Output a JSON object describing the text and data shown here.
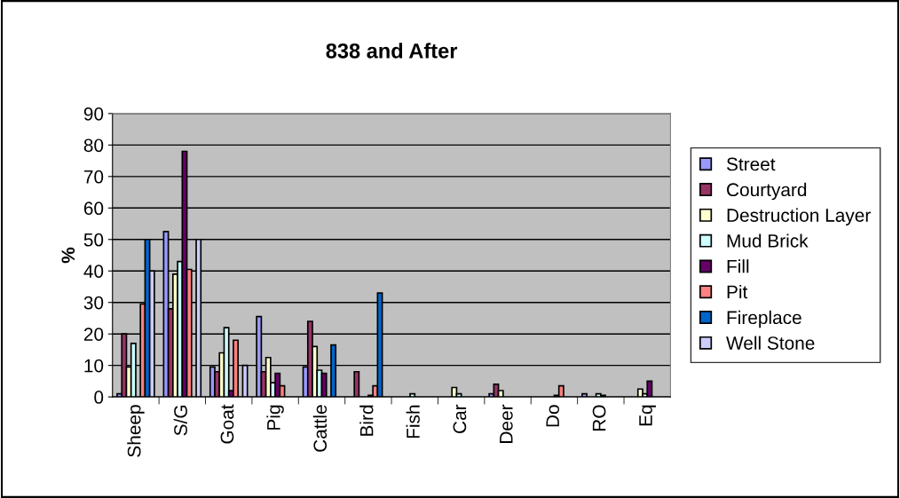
{
  "chart_data": {
    "type": "bar",
    "title": "838 and After",
    "ylabel": "%",
    "categories": [
      "Sheep",
      "S/G",
      "Goat",
      "Pig",
      "Cattle",
      "Bird",
      "Fish",
      "Car",
      "Deer",
      "Do",
      "RO",
      "Eq"
    ],
    "ylim": [
      0,
      90
    ],
    "yticks": [
      0,
      10,
      20,
      30,
      40,
      50,
      60,
      70,
      80,
      90
    ],
    "grid": "y",
    "legend": "right",
    "series": [
      {
        "name": "Street",
        "color": "#9999ff",
        "values": [
          1,
          52.5,
          9.5,
          25.5,
          9.5,
          null,
          null,
          null,
          1,
          null,
          1,
          null
        ]
      },
      {
        "name": "Courtyard",
        "color": "#993366",
        "values": [
          20,
          28,
          8,
          8,
          24,
          8,
          null,
          null,
          4,
          null,
          null,
          null
        ]
      },
      {
        "name": "Destruction Layer",
        "color": "#ffffcc",
        "values": [
          9.5,
          39,
          14,
          12.5,
          16,
          null,
          null,
          3,
          2,
          null,
          null,
          2.5
        ]
      },
      {
        "name": "Mud Brick",
        "color": "#ccffff",
        "values": [
          17,
          43,
          22,
          4.5,
          8.5,
          null,
          1,
          1,
          null,
          null,
          1,
          1
        ]
      },
      {
        "name": "Fill",
        "color": "#660066",
        "values": [
          null,
          78,
          2,
          7.5,
          7.5,
          0.5,
          null,
          null,
          null,
          0.5,
          0.5,
          5
        ]
      },
      {
        "name": "Pit",
        "color": "#ff8080",
        "values": [
          29.5,
          40.5,
          18,
          3.5,
          null,
          3.5,
          null,
          null,
          null,
          3.5,
          null,
          null
        ]
      },
      {
        "name": "Fireplace",
        "color": "#0066cc",
        "values": [
          50,
          null,
          null,
          null,
          16.5,
          33,
          null,
          null,
          null,
          null,
          null,
          null
        ]
      },
      {
        "name": "Well Stone",
        "color": "#ccccff",
        "values": [
          40,
          50,
          10,
          null,
          null,
          null,
          null,
          null,
          null,
          null,
          null,
          null
        ]
      }
    ]
  }
}
